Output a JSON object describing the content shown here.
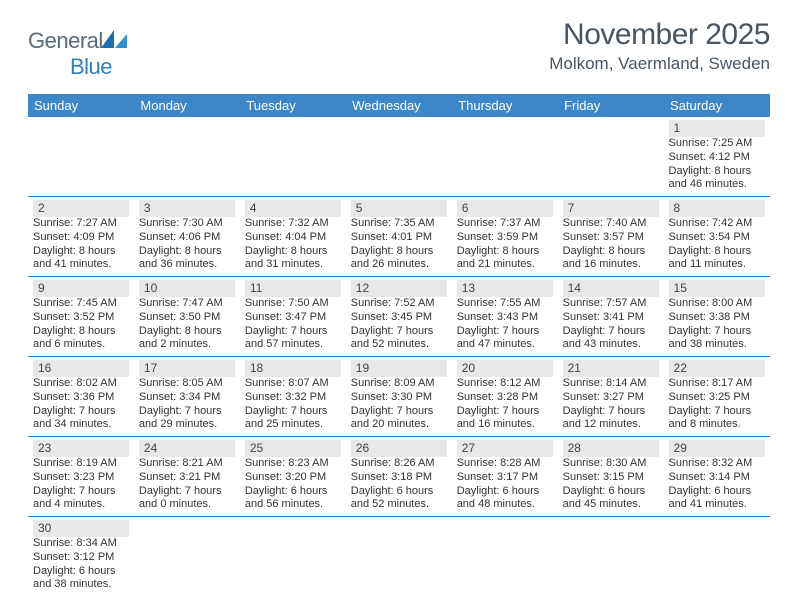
{
  "logo": {
    "text1": "General",
    "text2": "Blue"
  },
  "title": "November 2025",
  "location": "Molkom, Vaermland, Sweden",
  "colors": {
    "header_bg": "#3b87c8",
    "header_text": "#ffffff",
    "rule": "#2f7fc2",
    "daynum_bg": "#e8e8e8",
    "text": "#333333",
    "title_color": "#4a5560"
  },
  "day_names": [
    "Sunday",
    "Monday",
    "Tuesday",
    "Wednesday",
    "Thursday",
    "Friday",
    "Saturday"
  ],
  "weeks": [
    [
      null,
      null,
      null,
      null,
      null,
      null,
      {
        "n": "1",
        "sr": "Sunrise: 7:25 AM",
        "ss": "Sunset: 4:12 PM",
        "d1": "Daylight: 8 hours",
        "d2": "and 46 minutes."
      }
    ],
    [
      {
        "n": "2",
        "sr": "Sunrise: 7:27 AM",
        "ss": "Sunset: 4:09 PM",
        "d1": "Daylight: 8 hours",
        "d2": "and 41 minutes."
      },
      {
        "n": "3",
        "sr": "Sunrise: 7:30 AM",
        "ss": "Sunset: 4:06 PM",
        "d1": "Daylight: 8 hours",
        "d2": "and 36 minutes."
      },
      {
        "n": "4",
        "sr": "Sunrise: 7:32 AM",
        "ss": "Sunset: 4:04 PM",
        "d1": "Daylight: 8 hours",
        "d2": "and 31 minutes."
      },
      {
        "n": "5",
        "sr": "Sunrise: 7:35 AM",
        "ss": "Sunset: 4:01 PM",
        "d1": "Daylight: 8 hours",
        "d2": "and 26 minutes."
      },
      {
        "n": "6",
        "sr": "Sunrise: 7:37 AM",
        "ss": "Sunset: 3:59 PM",
        "d1": "Daylight: 8 hours",
        "d2": "and 21 minutes."
      },
      {
        "n": "7",
        "sr": "Sunrise: 7:40 AM",
        "ss": "Sunset: 3:57 PM",
        "d1": "Daylight: 8 hours",
        "d2": "and 16 minutes."
      },
      {
        "n": "8",
        "sr": "Sunrise: 7:42 AM",
        "ss": "Sunset: 3:54 PM",
        "d1": "Daylight: 8 hours",
        "d2": "and 11 minutes."
      }
    ],
    [
      {
        "n": "9",
        "sr": "Sunrise: 7:45 AM",
        "ss": "Sunset: 3:52 PM",
        "d1": "Daylight: 8 hours",
        "d2": "and 6 minutes."
      },
      {
        "n": "10",
        "sr": "Sunrise: 7:47 AM",
        "ss": "Sunset: 3:50 PM",
        "d1": "Daylight: 8 hours",
        "d2": "and 2 minutes."
      },
      {
        "n": "11",
        "sr": "Sunrise: 7:50 AM",
        "ss": "Sunset: 3:47 PM",
        "d1": "Daylight: 7 hours",
        "d2": "and 57 minutes."
      },
      {
        "n": "12",
        "sr": "Sunrise: 7:52 AM",
        "ss": "Sunset: 3:45 PM",
        "d1": "Daylight: 7 hours",
        "d2": "and 52 minutes."
      },
      {
        "n": "13",
        "sr": "Sunrise: 7:55 AM",
        "ss": "Sunset: 3:43 PM",
        "d1": "Daylight: 7 hours",
        "d2": "and 47 minutes."
      },
      {
        "n": "14",
        "sr": "Sunrise: 7:57 AM",
        "ss": "Sunset: 3:41 PM",
        "d1": "Daylight: 7 hours",
        "d2": "and 43 minutes."
      },
      {
        "n": "15",
        "sr": "Sunrise: 8:00 AM",
        "ss": "Sunset: 3:38 PM",
        "d1": "Daylight: 7 hours",
        "d2": "and 38 minutes."
      }
    ],
    [
      {
        "n": "16",
        "sr": "Sunrise: 8:02 AM",
        "ss": "Sunset: 3:36 PM",
        "d1": "Daylight: 7 hours",
        "d2": "and 34 minutes."
      },
      {
        "n": "17",
        "sr": "Sunrise: 8:05 AM",
        "ss": "Sunset: 3:34 PM",
        "d1": "Daylight: 7 hours",
        "d2": "and 29 minutes."
      },
      {
        "n": "18",
        "sr": "Sunrise: 8:07 AM",
        "ss": "Sunset: 3:32 PM",
        "d1": "Daylight: 7 hours",
        "d2": "and 25 minutes."
      },
      {
        "n": "19",
        "sr": "Sunrise: 8:09 AM",
        "ss": "Sunset: 3:30 PM",
        "d1": "Daylight: 7 hours",
        "d2": "and 20 minutes."
      },
      {
        "n": "20",
        "sr": "Sunrise: 8:12 AM",
        "ss": "Sunset: 3:28 PM",
        "d1": "Daylight: 7 hours",
        "d2": "and 16 minutes."
      },
      {
        "n": "21",
        "sr": "Sunrise: 8:14 AM",
        "ss": "Sunset: 3:27 PM",
        "d1": "Daylight: 7 hours",
        "d2": "and 12 minutes."
      },
      {
        "n": "22",
        "sr": "Sunrise: 8:17 AM",
        "ss": "Sunset: 3:25 PM",
        "d1": "Daylight: 7 hours",
        "d2": "and 8 minutes."
      }
    ],
    [
      {
        "n": "23",
        "sr": "Sunrise: 8:19 AM",
        "ss": "Sunset: 3:23 PM",
        "d1": "Daylight: 7 hours",
        "d2": "and 4 minutes."
      },
      {
        "n": "24",
        "sr": "Sunrise: 8:21 AM",
        "ss": "Sunset: 3:21 PM",
        "d1": "Daylight: 7 hours",
        "d2": "and 0 minutes."
      },
      {
        "n": "25",
        "sr": "Sunrise: 8:23 AM",
        "ss": "Sunset: 3:20 PM",
        "d1": "Daylight: 6 hours",
        "d2": "and 56 minutes."
      },
      {
        "n": "26",
        "sr": "Sunrise: 8:26 AM",
        "ss": "Sunset: 3:18 PM",
        "d1": "Daylight: 6 hours",
        "d2": "and 52 minutes."
      },
      {
        "n": "27",
        "sr": "Sunrise: 8:28 AM",
        "ss": "Sunset: 3:17 PM",
        "d1": "Daylight: 6 hours",
        "d2": "and 48 minutes."
      },
      {
        "n": "28",
        "sr": "Sunrise: 8:30 AM",
        "ss": "Sunset: 3:15 PM",
        "d1": "Daylight: 6 hours",
        "d2": "and 45 minutes."
      },
      {
        "n": "29",
        "sr": "Sunrise: 8:32 AM",
        "ss": "Sunset: 3:14 PM",
        "d1": "Daylight: 6 hours",
        "d2": "and 41 minutes."
      }
    ],
    [
      {
        "n": "30",
        "sr": "Sunrise: 8:34 AM",
        "ss": "Sunset: 3:12 PM",
        "d1": "Daylight: 6 hours",
        "d2": "and 38 minutes."
      },
      null,
      null,
      null,
      null,
      null,
      null
    ]
  ]
}
